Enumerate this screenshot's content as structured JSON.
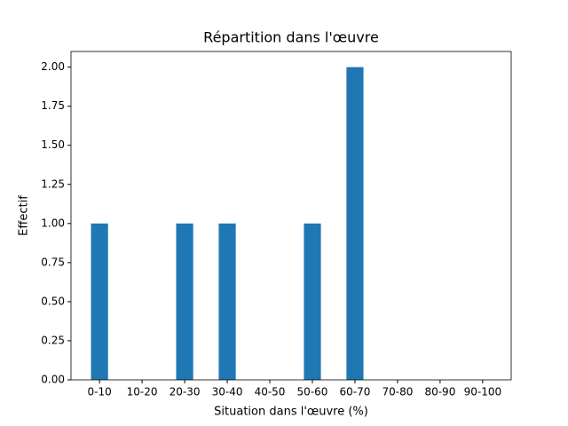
{
  "chart_data": {
    "type": "bar",
    "title": "Répartition dans l'œuvre",
    "x_label": "Situation dans l'œuvre (%)",
    "y_label": "Effectif",
    "categories": [
      "0-10",
      "10-20",
      "20-30",
      "30-40",
      "40-50",
      "50-60",
      "60-70",
      "70-80",
      "80-90",
      "90-100"
    ],
    "values": [
      1,
      0,
      1,
      1,
      0,
      1,
      2,
      0,
      0,
      0
    ],
    "color": "#1f77b4",
    "ylim": [
      0,
      2.1
    ],
    "yticks": [
      {
        "value": 0,
        "label": "0.00"
      },
      {
        "value": 0.25,
        "label": "0.25"
      },
      {
        "value": 0.5,
        "label": "0.50"
      },
      {
        "value": 0.75,
        "label": "0.75"
      },
      {
        "value": 1,
        "label": "1.00"
      },
      {
        "value": 1.25,
        "label": "1.25"
      },
      {
        "value": 1.5,
        "label": "1.50"
      },
      {
        "value": 1.75,
        "label": "1.75"
      },
      {
        "value": 2,
        "label": "2.00"
      }
    ],
    "grid": false
  }
}
